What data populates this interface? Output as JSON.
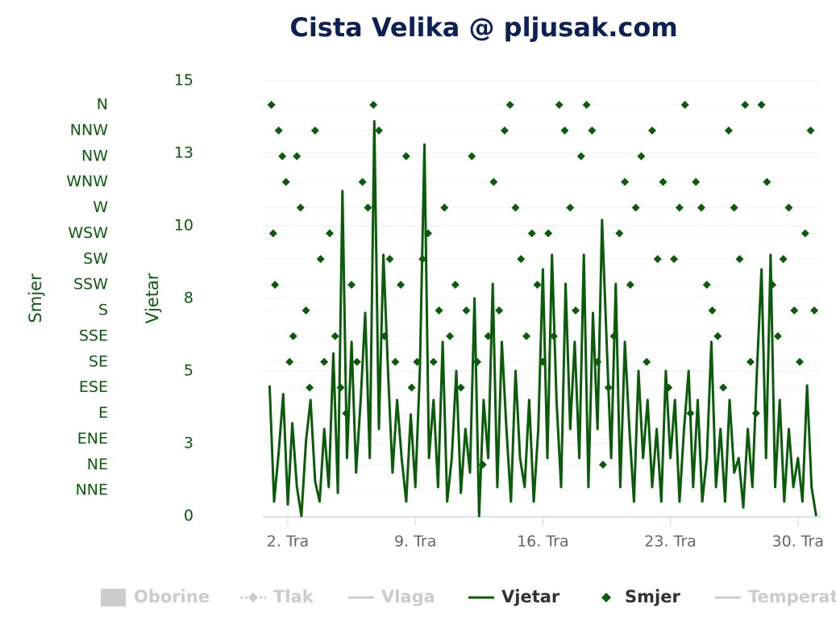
{
  "chart_data": {
    "type": "line",
    "title": "Cista Velika @ pljusak.com",
    "ylabel": "Vjetar",
    "y2label": "Smjer",
    "xlim": [
      0.63,
      31.25
    ],
    "xticks": [
      {
        "value": 2,
        "label": "2. Tra"
      },
      {
        "value": 9,
        "label": "9. Tra"
      },
      {
        "value": 16,
        "label": "16. Tra"
      },
      {
        "value": 23,
        "label": "23. Tra"
      },
      {
        "value": 30,
        "label": "30. Tra"
      }
    ],
    "ylim": [
      0,
      15
    ],
    "yticks": [
      0,
      {
        "value": 2.5,
        "label": "3"
      },
      5,
      {
        "value": 7.5,
        "label": "8"
      },
      10,
      {
        "value": 12.5,
        "label": "13"
      },
      15
    ],
    "y2lim": [
      0,
      381.2
    ],
    "y2ticks": [
      {
        "value": 22.5,
        "label": "NNE"
      },
      {
        "value": 45,
        "label": "NE"
      },
      {
        "value": 67.5,
        "label": "ENE"
      },
      {
        "value": 90,
        "label": "E"
      },
      {
        "value": 112.5,
        "label": "ESE"
      },
      {
        "value": 135,
        "label": "SE"
      },
      {
        "value": 157.5,
        "label": "SSE"
      },
      {
        "value": 180,
        "label": "S"
      },
      {
        "value": 202.5,
        "label": "SSW"
      },
      {
        "value": 225,
        "label": "SW"
      },
      {
        "value": 247.5,
        "label": "WSW"
      },
      {
        "value": 270,
        "label": "W"
      },
      {
        "value": 292.5,
        "label": "WNW"
      },
      {
        "value": 315,
        "label": "NW"
      },
      {
        "value": 337.5,
        "label": "NNW"
      },
      {
        "value": 360,
        "label": "N"
      }
    ],
    "grid": true,
    "legend": [
      {
        "name": "Oborine",
        "visible": false
      },
      {
        "name": "Tlak",
        "visible": false
      },
      {
        "name": "Vlaga",
        "visible": false
      },
      {
        "name": "Vjetar",
        "visible": true
      },
      {
        "name": "Smjer",
        "visible": true
      },
      {
        "name": "Temperat",
        "visible": false
      }
    ],
    "series": [
      {
        "name": "Vjetar",
        "type": "line",
        "color": "#0a5c0a",
        "x": [
          1,
          1.25,
          1.5,
          1.75,
          2,
          2.25,
          2.5,
          2.75,
          3,
          3.25,
          3.5,
          3.75,
          4,
          4.25,
          4.5,
          4.75,
          5,
          5.25,
          5.5,
          5.75,
          6,
          6.25,
          6.5,
          6.75,
          7,
          7.25,
          7.5,
          7.75,
          8,
          8.25,
          8.5,
          8.75,
          9,
          9.25,
          9.5,
          9.75,
          10,
          10.25,
          10.5,
          10.75,
          11,
          11.25,
          11.5,
          11.75,
          12,
          12.25,
          12.5,
          12.75,
          13,
          13.25,
          13.5,
          13.75,
          14,
          14.25,
          14.5,
          14.75,
          15,
          15.25,
          15.5,
          15.75,
          16,
          16.25,
          16.5,
          16.75,
          17,
          17.25,
          17.5,
          17.75,
          18,
          18.25,
          18.5,
          18.75,
          19,
          19.25,
          19.5,
          19.75,
          20,
          20.25,
          20.5,
          20.75,
          21,
          21.25,
          21.5,
          21.75,
          22,
          22.25,
          22.5,
          22.75,
          23,
          23.25,
          23.5,
          23.75,
          24,
          24.25,
          24.5,
          24.75,
          25,
          25.25,
          25.5,
          25.75,
          26,
          26.25,
          26.5,
          26.75,
          27,
          27.25,
          27.5,
          27.75,
          28,
          28.25,
          28.5,
          28.75,
          29,
          29.25,
          29.5,
          29.75,
          30,
          30.25,
          30.5,
          30.75,
          31
        ],
        "values": [
          4.5,
          0.5,
          2.2,
          4.2,
          0.4,
          3.2,
          1,
          0,
          2.6,
          4,
          1.2,
          0.5,
          3,
          1,
          5.6,
          0.8,
          11.2,
          2,
          6,
          1.5,
          4,
          7,
          2,
          13.6,
          3,
          9,
          5,
          1.5,
          4,
          2,
          0.5,
          3.5,
          1,
          5,
          12.8,
          2,
          4,
          1,
          6,
          0.5,
          2,
          5,
          0.8,
          3,
          1.5,
          7.5,
          0,
          4,
          2,
          8,
          1,
          6,
          3,
          0.5,
          5,
          2,
          1,
          4,
          0.5,
          3,
          8.5,
          2,
          9,
          4,
          1,
          8,
          3,
          6,
          2,
          9,
          1,
          7,
          3,
          10.2,
          6,
          2,
          8,
          1,
          6,
          3,
          0.5,
          5,
          2,
          4,
          1,
          3,
          0.5,
          5,
          2,
          4,
          0.5,
          3,
          5,
          1,
          4,
          0.5,
          2,
          6,
          1,
          3,
          0.5,
          4,
          1.5,
          2,
          0.3,
          3,
          1,
          5,
          8.5,
          2,
          9,
          1,
          4,
          0.5,
          3,
          1,
          2,
          0.5,
          4.5,
          1,
          0
        ]
      },
      {
        "name": "Smjer",
        "type": "scatter",
        "axis": "y2",
        "color": "#0a5c0a",
        "x": [
          1.1,
          1.2,
          1.3,
          1.5,
          1.7,
          1.9,
          2.1,
          2.3,
          2.5,
          2.7,
          3.0,
          3.2,
          3.5,
          3.8,
          4.0,
          4.3,
          4.6,
          4.9,
          5.2,
          5.5,
          5.8,
          6.1,
          6.4,
          6.7,
          7.0,
          7.3,
          7.6,
          7.9,
          8.2,
          8.5,
          8.8,
          9.1,
          9.4,
          9.7,
          10.0,
          10.3,
          10.6,
          10.9,
          11.2,
          11.5,
          11.8,
          12.1,
          12.4,
          12.7,
          13.0,
          13.3,
          13.6,
          13.9,
          14.2,
          14.5,
          14.8,
          15.1,
          15.4,
          15.7,
          16.0,
          16.3,
          16.6,
          16.9,
          17.2,
          17.5,
          17.8,
          18.1,
          18.4,
          18.7,
          19.0,
          19.3,
          19.6,
          19.9,
          20.2,
          20.5,
          20.8,
          21.1,
          21.4,
          21.7,
          22.0,
          22.3,
          22.6,
          22.9,
          23.2,
          23.5,
          23.8,
          24.1,
          24.4,
          24.7,
          25.0,
          25.3,
          25.6,
          25.9,
          26.2,
          26.5,
          26.8,
          27.1,
          27.4,
          27.7,
          28.0,
          28.3,
          28.6,
          28.9,
          29.2,
          29.5,
          29.8,
          30.1,
          30.4,
          30.7,
          30.9
        ],
        "values": [
          360,
          247.5,
          202.5,
          337.5,
          315,
          292.5,
          135,
          157.5,
          315,
          270,
          180,
          112.5,
          337.5,
          225,
          135,
          247.5,
          157.5,
          112.5,
          90,
          202.5,
          135,
          292.5,
          270,
          360,
          337.5,
          157.5,
          225,
          135,
          202.5,
          315,
          112.5,
          135,
          225,
          247.5,
          135,
          180,
          270,
          157.5,
          202.5,
          112.5,
          180,
          315,
          135,
          45,
          157.5,
          292.5,
          180,
          337.5,
          360,
          270,
          225,
          157.5,
          247.5,
          202.5,
          135,
          247.5,
          157.5,
          360,
          337.5,
          270,
          180,
          315,
          360,
          337.5,
          135,
          45,
          112.5,
          157.5,
          247.5,
          292.5,
          202.5,
          270,
          315,
          135,
          337.5,
          225,
          292.5,
          112.5,
          225,
          270,
          360,
          90,
          292.5,
          270,
          202.5,
          180,
          157.5,
          112.5,
          337.5,
          270,
          225,
          360,
          135,
          90,
          360,
          292.5,
          202.5,
          157.5,
          225,
          270,
          180,
          135,
          247.5,
          337.5,
          180
        ]
      }
    ]
  }
}
